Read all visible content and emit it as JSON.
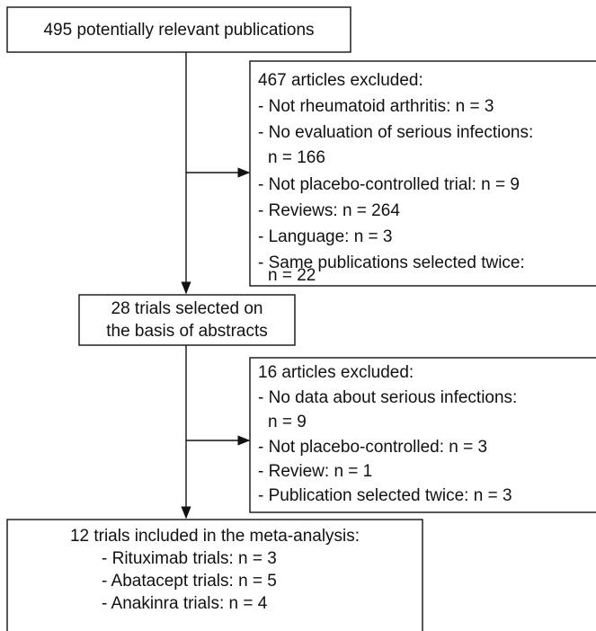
{
  "nodes": [
    {
      "lines": [
        "495 potentially relevant publications"
      ]
    },
    {
      "lines": [
        "467 articles excluded:",
        "- Not rheumatoid arthritis: n = 3",
        "- No evaluation of serious infections:",
        "n = 166",
        "- Not placebo-controlled trial: n = 9",
        "- Reviews: n = 264",
        "- Language: n = 3",
        "- Same publications selected twice:",
        "n = 22"
      ]
    },
    {
      "lines": [
        "28 trials selected on",
        "the basis of abstracts"
      ]
    },
    {
      "lines": [
        "16 articles excluded:",
        "- No data about serious infections:",
        "n = 9",
        "- Not placebo-controlled: n = 3",
        "- Review: n = 1",
        "- Publication selected twice: n = 3"
      ]
    },
    {
      "lines": [
        "12 trials included in the meta-analysis:",
        "- Rituximab trials: n = 3",
        "- Abatacept trials: n = 5",
        "- Anakinra trials: n = 4"
      ]
    }
  ]
}
